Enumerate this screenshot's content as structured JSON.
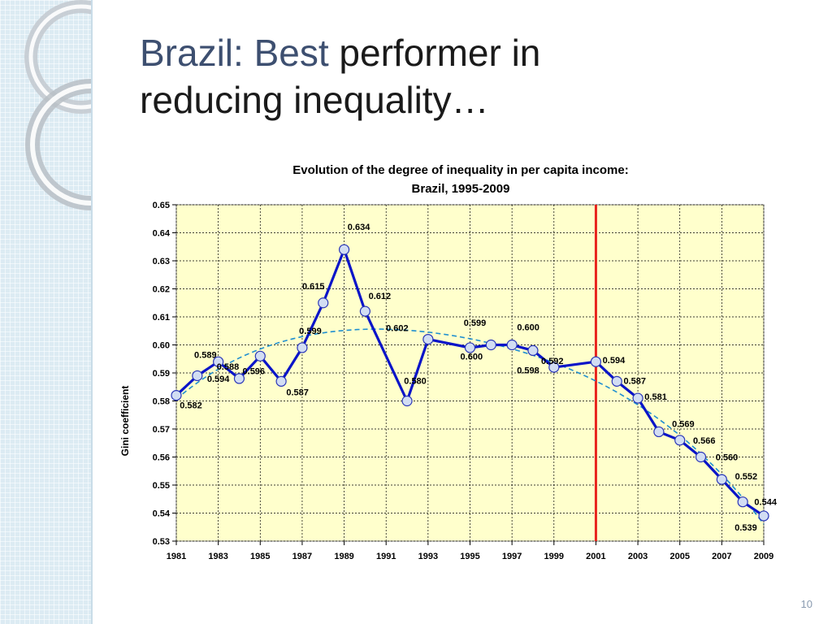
{
  "slide": {
    "title_accent": "Brazil:  Best",
    "title_rest_1": " performer in",
    "title_line_2": "reducing inequality…",
    "page_number": "10"
  },
  "chart_data": {
    "type": "line",
    "title": "Evolution of the degree of inequality in per capita income:",
    "subtitle": "Brazil, 1995-2009",
    "xlabel": "",
    "ylabel": "Gini coefficient",
    "ylim": [
      0.53,
      0.65
    ],
    "xlim": [
      1981,
      2009
    ],
    "yticks": [
      "0.53",
      "0.54",
      "0.55",
      "0.56",
      "0.57",
      "0.58",
      "0.59",
      "0.60",
      "0.61",
      "0.62",
      "0.63",
      "0.64",
      "0.65"
    ],
    "xticks": [
      "1981",
      "1983",
      "1985",
      "1987",
      "1989",
      "1991",
      "1993",
      "1995",
      "1997",
      "1999",
      "2001",
      "2003",
      "2005",
      "2007",
      "2009"
    ],
    "grid": true,
    "background": "#ffffcc",
    "series": [
      {
        "color": "#0a14c8",
        "x": [
          1981,
          1982,
          1983,
          1984,
          1985,
          1986,
          1987,
          1988,
          1989,
          1990,
          1992,
          1993,
          1995,
          1996,
          1997,
          1998,
          1999,
          2001,
          2002,
          2003,
          2004,
          2005,
          2006,
          2007,
          2008,
          2009
        ],
        "values": [
          0.582,
          0.589,
          0.594,
          0.588,
          0.596,
          0.587,
          0.599,
          0.615,
          0.634,
          0.612,
          0.58,
          0.602,
          0.599,
          0.6,
          0.6,
          0.598,
          0.592,
          0.594,
          0.587,
          0.581,
          0.569,
          0.566,
          0.56,
          0.552,
          0.544,
          0.539
        ],
        "labels": [
          "0.582",
          "0.589",
          "0.594",
          "0.588",
          "0.596",
          "0.587",
          "0.599",
          "0.615",
          "0.634",
          "0.612",
          "0.580",
          "0.602",
          "0.599",
          "0.600",
          "0.600",
          "0.598",
          "0.592",
          "0.594",
          "0.587",
          "0.581",
          "0.569",
          "0.566",
          "0.560",
          "0.552",
          "0.544",
          "0.539"
        ]
      }
    ],
    "trendline": {
      "color": "#1f8fd0",
      "style": "dashed"
    },
    "reference_line": {
      "x": 2001,
      "color": "#e8231e"
    }
  }
}
